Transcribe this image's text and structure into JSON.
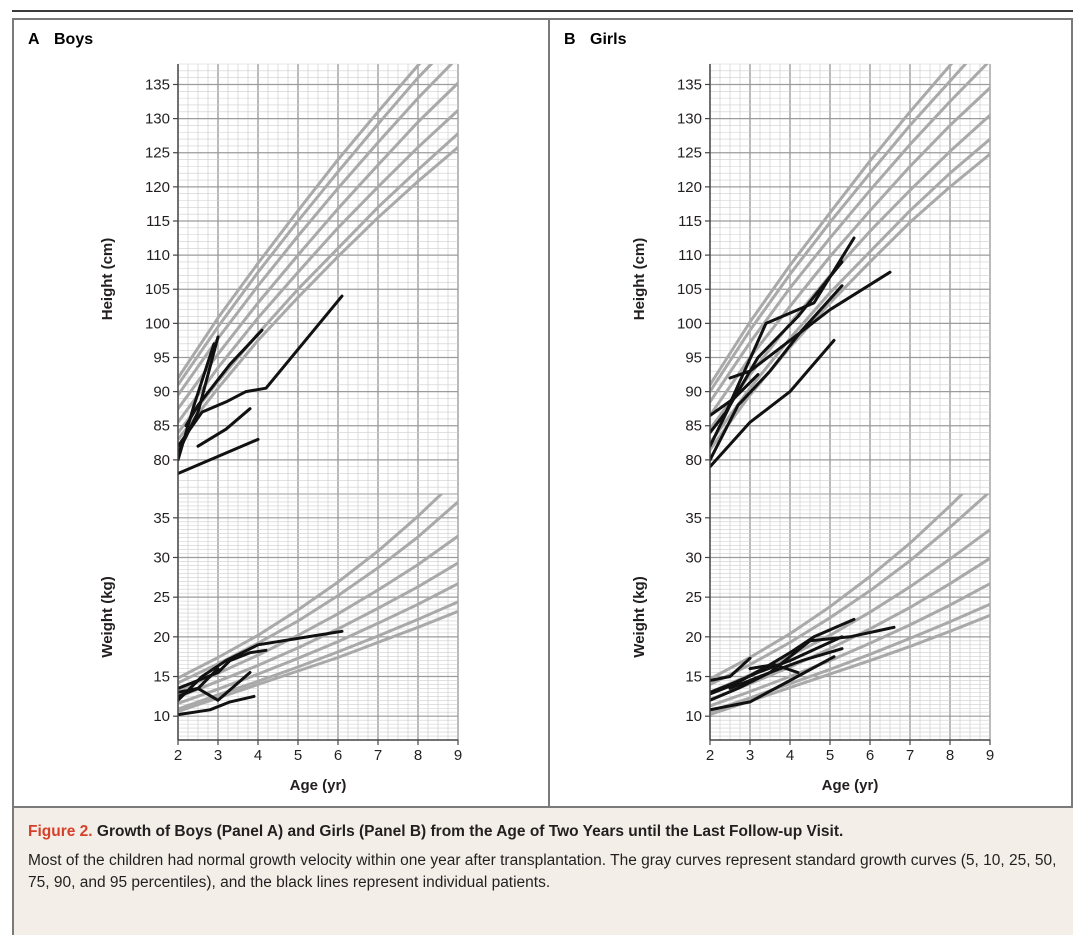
{
  "panels": {
    "a": {
      "letter": "A",
      "title": "Boys"
    },
    "b": {
      "letter": "B",
      "title": "Girls"
    }
  },
  "caption": {
    "figure_number": "Figure 2.",
    "title": "Growth of Boys (Panel A) and Girls (Panel B) from the Age of Two Years until the Last Follow-up Visit.",
    "text": "Most of the children had normal growth velocity within one year after transplantation. The gray curves represent standard growth curves (5, 10, 25, 50, 75, 90, and 95 percentiles), and the black lines represent individual patients."
  },
  "colors": {
    "patient_line": "#111111",
    "reference_curve": "#a9a9a9",
    "grid_major": "#9c9c9c",
    "grid_minor": "#cfcfcf",
    "caption_accent": "#d6402b",
    "caption_background": "#f3efe8"
  },
  "chart_data": [
    {
      "type": "line",
      "panel": "A",
      "title": "Boys",
      "xlabel": "Age (yr)",
      "ylabel": "Height (cm)",
      "xlim": [
        2,
        9
      ],
      "ylim": [
        75,
        135
      ],
      "xticks": [
        2,
        3,
        4,
        5,
        6,
        7,
        8,
        9
      ],
      "yticks": [
        80,
        85,
        90,
        95,
        100,
        105,
        110,
        115,
        120,
        125,
        130,
        135
      ],
      "grid": true,
      "reference_curves": [
        {
          "percentile": 5,
          "x": [
            2,
            3,
            4,
            5,
            6,
            7,
            8,
            9
          ],
          "y": [
            83,
            90.5,
            97.5,
            103.8,
            109.8,
            115.5,
            120.8,
            125.8
          ]
        },
        {
          "percentile": 10,
          "x": [
            2,
            3,
            4,
            5,
            6,
            7,
            8,
            9
          ],
          "y": [
            84,
            91.5,
            98.5,
            105,
            111,
            117,
            122.5,
            127.8
          ]
        },
        {
          "percentile": 25,
          "x": [
            2,
            3,
            4,
            5,
            6,
            7,
            8,
            9
          ],
          "y": [
            85.5,
            93.5,
            100.8,
            107.5,
            114,
            120,
            125.8,
            131.2
          ]
        },
        {
          "percentile": 50,
          "x": [
            2,
            3,
            4,
            5,
            6,
            7,
            8,
            9
          ],
          "y": [
            87.5,
            95.5,
            103,
            110,
            116.8,
            123.2,
            129.5,
            135.2
          ]
        },
        {
          "percentile": 75,
          "x": [
            2,
            3,
            4,
            5,
            6,
            7,
            8,
            9
          ],
          "y": [
            89.5,
            97.8,
            105.5,
            112.8,
            119.8,
            126.5,
            133,
            139
          ]
        },
        {
          "percentile": 90,
          "x": [
            2,
            3,
            4,
            5,
            6,
            7,
            8,
            9
          ],
          "y": [
            91,
            99.5,
            107.5,
            115,
            122.2,
            129.2,
            136,
            142
          ]
        },
        {
          "percentile": 95,
          "x": [
            2,
            3,
            4,
            5,
            6,
            7,
            8,
            9
          ],
          "y": [
            92,
            100.8,
            108.8,
            116.5,
            124,
            131,
            137.8,
            144
          ]
        }
      ],
      "series": [
        {
          "x": [
            2.0,
            2.5,
            3.0
          ],
          "y": [
            81,
            87,
            98
          ]
        },
        {
          "x": [
            2.0,
            2.4,
            2.9
          ],
          "y": [
            80,
            88,
            97
          ]
        },
        {
          "x": [
            2.0,
            2.6,
            3.2,
            3.7,
            4.2,
            6.1
          ],
          "y": [
            82,
            87,
            88.5,
            90,
            90.5,
            104
          ]
        },
        {
          "x": [
            2.2,
            2.5,
            3.3,
            4.1
          ],
          "y": [
            85,
            88,
            94,
            99
          ]
        },
        {
          "x": [
            2.5,
            3.2,
            3.8
          ],
          "y": [
            82,
            84.5,
            87.5
          ]
        },
        {
          "x": [
            2.0,
            4.0
          ],
          "y": [
            78,
            83
          ]
        }
      ]
    },
    {
      "type": "line",
      "panel": "A",
      "title": "",
      "xlabel": "Age (yr)",
      "ylabel": "Weight (kg)",
      "xlim": [
        2,
        9
      ],
      "ylim": [
        7,
        38
      ],
      "xticks": [
        2,
        3,
        4,
        5,
        6,
        7,
        8,
        9
      ],
      "yticks": [
        10,
        15,
        20,
        25,
        30,
        35
      ],
      "grid": true,
      "reference_curves": [
        {
          "percentile": 5,
          "x": [
            2,
            3,
            4,
            5,
            6,
            7,
            8,
            9
          ],
          "y": [
            10.6,
            12.3,
            14,
            15.7,
            17.4,
            19.3,
            21.2,
            23.2
          ]
        },
        {
          "percentile": 10,
          "x": [
            2,
            3,
            4,
            5,
            6,
            7,
            8,
            9
          ],
          "y": [
            10.9,
            12.7,
            14.4,
            16.2,
            18.1,
            20.1,
            22.2,
            24.4
          ]
        },
        {
          "percentile": 25,
          "x": [
            2,
            3,
            4,
            5,
            6,
            7,
            8,
            9
          ],
          "y": [
            11.6,
            13.4,
            15.3,
            17.3,
            19.4,
            21.7,
            24.1,
            26.7
          ]
        },
        {
          "percentile": 50,
          "x": [
            2,
            3,
            4,
            5,
            6,
            7,
            8,
            9
          ],
          "y": [
            12.4,
            14.4,
            16.4,
            18.6,
            21,
            23.6,
            26.3,
            29.3
          ]
        },
        {
          "percentile": 75,
          "x": [
            2,
            3,
            4,
            5,
            6,
            7,
            8,
            9
          ],
          "y": [
            13.2,
            15.4,
            17.7,
            20.2,
            22.9,
            25.9,
            29.1,
            32.7
          ]
        },
        {
          "percentile": 90,
          "x": [
            2,
            3,
            4,
            5,
            6,
            7,
            8,
            9
          ],
          "y": [
            14.2,
            16.6,
            19.2,
            22,
            25.2,
            28.7,
            32.6,
            37
          ]
        },
        {
          "percentile": 95,
          "x": [
            2,
            3,
            4,
            5,
            6,
            7,
            8,
            9
          ],
          "y": [
            14.8,
            17.4,
            20.2,
            23.4,
            26.9,
            30.8,
            35.2,
            40
          ]
        }
      ],
      "series": [
        {
          "x": [
            2.0,
            2.5,
            3.0,
            3.3,
            3.8,
            4.2
          ],
          "y": [
            13.5,
            14.5,
            15.5,
            17,
            18,
            18.3
          ]
        },
        {
          "x": [
            2.0,
            2.6,
            3.2,
            4.0,
            6.1
          ],
          "y": [
            12,
            15,
            17,
            19,
            20.7
          ]
        },
        {
          "x": [
            2.0,
            2.5,
            3.0,
            3.8
          ],
          "y": [
            13,
            13.5,
            12,
            15.5
          ]
        },
        {
          "x": [
            2.0,
            2.8,
            3.3,
            3.9
          ],
          "y": [
            10.2,
            10.8,
            11.8,
            12.5
          ]
        },
        {
          "x": [
            2.0,
            2.5,
            3.0
          ],
          "y": [
            12.5,
            13.5,
            16
          ]
        }
      ]
    },
    {
      "type": "line",
      "panel": "B",
      "title": "Girls",
      "xlabel": "Age (yr)",
      "ylabel": "Height (cm)",
      "xlim": [
        2,
        9
      ],
      "ylim": [
        75,
        135
      ],
      "xticks": [
        2,
        3,
        4,
        5,
        6,
        7,
        8,
        9
      ],
      "yticks": [
        80,
        85,
        90,
        95,
        100,
        105,
        110,
        115,
        120,
        125,
        130,
        135
      ],
      "grid": true,
      "reference_curves": [
        {
          "percentile": 5,
          "x": [
            2,
            3,
            4,
            5,
            6,
            7,
            8,
            9
          ],
          "y": [
            81.5,
            89.5,
            96.5,
            103,
            109,
            114.8,
            120,
            124.8
          ]
        },
        {
          "percentile": 10,
          "x": [
            2,
            3,
            4,
            5,
            6,
            7,
            8,
            9
          ],
          "y": [
            82.5,
            90.5,
            97.8,
            104.5,
            110.5,
            116.5,
            122,
            127
          ]
        },
        {
          "percentile": 25,
          "x": [
            2,
            3,
            4,
            5,
            6,
            7,
            8,
            9
          ],
          "y": [
            84.5,
            92.5,
            100,
            107,
            113.5,
            119.5,
            125.2,
            130.5
          ]
        },
        {
          "percentile": 50,
          "x": [
            2,
            3,
            4,
            5,
            6,
            7,
            8,
            9
          ],
          "y": [
            86.5,
            95,
            102.5,
            109.8,
            116.5,
            123,
            129,
            134.5
          ]
        },
        {
          "percentile": 75,
          "x": [
            2,
            3,
            4,
            5,
            6,
            7,
            8,
            9
          ],
          "y": [
            88.5,
            97.2,
            105.2,
            112.5,
            119.5,
            126.2,
            132.5,
            138.5
          ]
        },
        {
          "percentile": 90,
          "x": [
            2,
            3,
            4,
            5,
            6,
            7,
            8,
            9
          ],
          "y": [
            90,
            99,
            107.2,
            114.8,
            122,
            129,
            135.5,
            142
          ]
        },
        {
          "percentile": 95,
          "x": [
            2,
            3,
            4,
            5,
            6,
            7,
            8,
            9
          ],
          "y": [
            91,
            100.2,
            108.5,
            116.2,
            123.8,
            131,
            137.8,
            144.5
          ]
        }
      ],
      "series": [
        {
          "x": [
            2.0,
            2.4,
            3.4,
            4.0,
            4.6,
            5.6
          ],
          "y": [
            84,
            87,
            100,
            101.5,
            103,
            112.5
          ]
        },
        {
          "x": [
            2.0,
            2.5,
            3.2,
            4.2,
            5.3
          ],
          "y": [
            82,
            88,
            95,
            101,
            109
          ]
        },
        {
          "x": [
            2.0,
            3.0,
            4.0,
            5.1
          ],
          "y": [
            79,
            85.5,
            90,
            97.5
          ]
        },
        {
          "x": [
            2.0,
            2.7,
            3.5,
            4.3,
            5.3
          ],
          "y": [
            80,
            88,
            93,
            99,
            105.5
          ]
        },
        {
          "x": [
            2.5,
            3.0,
            4.0,
            5.0,
            6.5
          ],
          "y": [
            92,
            93,
            97.5,
            102,
            107.5
          ]
        },
        {
          "x": [
            2.0,
            2.6,
            3.2
          ],
          "y": [
            86.5,
            89,
            92.5
          ]
        }
      ]
    },
    {
      "type": "line",
      "panel": "B",
      "title": "",
      "xlabel": "Age (yr)",
      "ylabel": "Weight (kg)",
      "xlim": [
        2,
        9
      ],
      "ylim": [
        7,
        38
      ],
      "xticks": [
        2,
        3,
        4,
        5,
        6,
        7,
        8,
        9
      ],
      "yticks": [
        10,
        15,
        20,
        25,
        30,
        35
      ],
      "grid": true,
      "reference_curves": [
        {
          "percentile": 5,
          "x": [
            2,
            3,
            4,
            5,
            6,
            7,
            8,
            9
          ],
          "y": [
            10.2,
            11.9,
            13.6,
            15.3,
            17,
            18.8,
            20.7,
            22.7
          ]
        },
        {
          "percentile": 10,
          "x": [
            2,
            3,
            4,
            5,
            6,
            7,
            8,
            9
          ],
          "y": [
            10.6,
            12.3,
            14.1,
            15.9,
            17.8,
            19.8,
            21.9,
            24.1
          ]
        },
        {
          "percentile": 25,
          "x": [
            2,
            3,
            4,
            5,
            6,
            7,
            8,
            9
          ],
          "y": [
            11.3,
            13.1,
            15,
            17,
            19.2,
            21.5,
            24,
            26.7
          ]
        },
        {
          "percentile": 50,
          "x": [
            2,
            3,
            4,
            5,
            6,
            7,
            8,
            9
          ],
          "y": [
            12.1,
            14.1,
            16.2,
            18.5,
            21,
            23.7,
            26.7,
            29.9
          ]
        },
        {
          "percentile": 75,
          "x": [
            2,
            3,
            4,
            5,
            6,
            7,
            8,
            9
          ],
          "y": [
            13,
            15.2,
            17.6,
            20.2,
            23.1,
            26.3,
            29.8,
            33.5
          ]
        },
        {
          "percentile": 90,
          "x": [
            2,
            3,
            4,
            5,
            6,
            7,
            8,
            9
          ],
          "y": [
            14,
            16.5,
            19.3,
            22.4,
            25.8,
            29.6,
            33.8,
            38.3
          ]
        },
        {
          "percentile": 95,
          "x": [
            2,
            3,
            4,
            5,
            6,
            7,
            8,
            9
          ],
          "y": [
            14.7,
            17.4,
            20.4,
            23.8,
            27.6,
            31.8,
            36.5,
            41.5
          ]
        }
      ],
      "series": [
        {
          "x": [
            2.0,
            2.6,
            3.4,
            4.0,
            4.6,
            5.6
          ],
          "y": [
            12.8,
            14,
            16.2,
            18,
            20,
            22.2
          ]
        },
        {
          "x": [
            2.0,
            2.5,
            3.2,
            4.0,
            5.3
          ],
          "y": [
            13,
            14,
            15.5,
            17,
            20
          ]
        },
        {
          "x": [
            2.0,
            3.0,
            4.0,
            5.1
          ],
          "y": [
            10.8,
            11.8,
            14.5,
            17.5
          ]
        },
        {
          "x": [
            2.0,
            2.7,
            3.5,
            4.3,
            5.3
          ],
          "y": [
            12,
            13.5,
            15.5,
            17,
            18.5
          ]
        },
        {
          "x": [
            2.5,
            3.5,
            4.5,
            5.5,
            6.6
          ],
          "y": [
            13.5,
            15.5,
            19.5,
            20,
            21.2
          ]
        },
        {
          "x": [
            2.0,
            2.5,
            3.0
          ],
          "y": [
            14.5,
            15,
            17.3
          ]
        },
        {
          "x": [
            3.0,
            3.6,
            4.2
          ],
          "y": [
            16,
            16.5,
            15.5
          ]
        }
      ]
    }
  ]
}
